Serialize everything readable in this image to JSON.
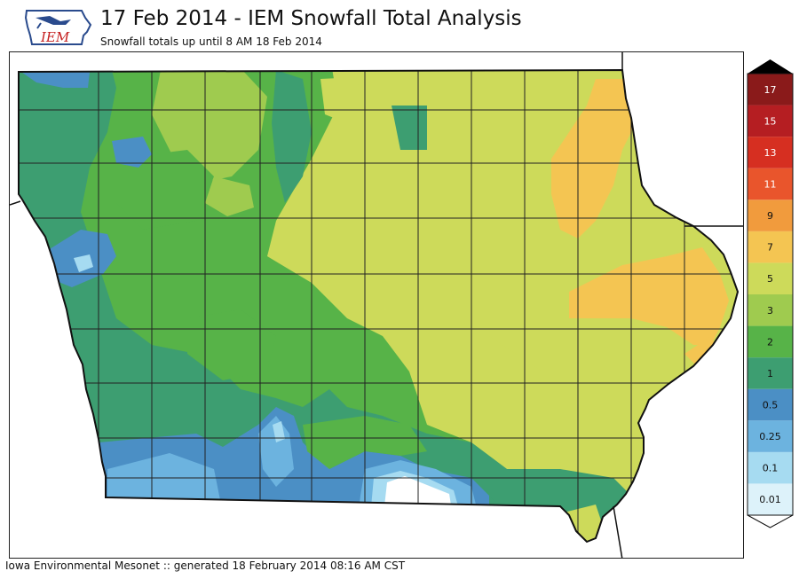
{
  "header": {
    "title": "17 Feb 2014 - IEM Snowfall Total Analysis",
    "subtitle": "Snowfall totals up until 8 AM 18 Feb 2014",
    "logo_text": "IEM"
  },
  "footer": {
    "credit": "Iowa Environmental Mesonet :: generated 18 February 2014 08:16 AM CST"
  },
  "legend": {
    "levels": [
      "0.01",
      "0.1",
      "0.25",
      "0.5",
      "1",
      "2",
      "3",
      "5",
      "7",
      "9",
      "11",
      "13",
      "15",
      "17"
    ],
    "colors": [
      "#ddf2fa",
      "#a6dbf1",
      "#6cb3df",
      "#4b8fc5",
      "#3d9e71",
      "#57b348",
      "#9fcb4f",
      "#cdda5a",
      "#f4c552",
      "#f19b3d",
      "#e9552c",
      "#d62f21",
      "#b51e22",
      "#8a1a1a"
    ]
  },
  "map": {
    "colors": {
      "white": "#ffffff",
      "ltblue": "#a6dbf1",
      "medblue": "#6cb3df",
      "blue": "#4b8fc5",
      "darkgreen": "#3d9e71",
      "green": "#57b348",
      "ygreen": "#9fcb4f",
      "yellowgreen": "#cdda5a",
      "orange": "#f4c552"
    }
  }
}
